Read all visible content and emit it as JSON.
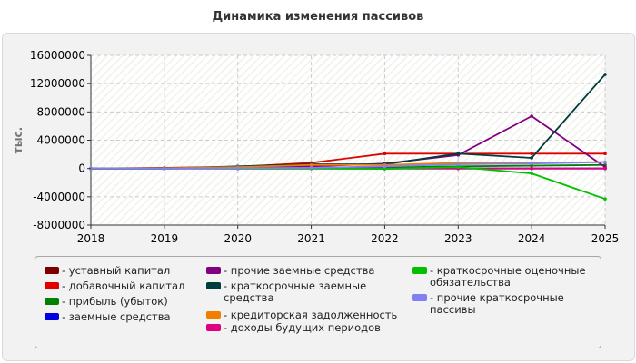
{
  "title": "Динамика изменения пассивов",
  "chart_data": {
    "type": "line",
    "ylabel": "тыс.",
    "xlabel": "",
    "x": [
      "2018",
      "2019",
      "2020",
      "2021",
      "2022",
      "2023",
      "2024",
      "2025"
    ],
    "ylim": [
      -8000000,
      16000000
    ],
    "yticks": [
      -8000000,
      -4000000,
      0,
      4000000,
      8000000,
      12000000,
      16000000
    ],
    "ytick_labels": [
      "-8000000",
      "-4000000",
      "0",
      "4000000",
      "8000000",
      "12000000",
      "16000000"
    ],
    "grid": true,
    "legend_position": "bottom",
    "series": [
      {
        "name": "уставный капитал",
        "color": "#7a0000",
        "values": [
          0,
          10000,
          10000,
          10000,
          10000,
          10000,
          10000,
          10000
        ]
      },
      {
        "name": "добавочный капитал",
        "color": "#e00000",
        "values": [
          0,
          100000,
          250000,
          800000,
          2100000,
          2100000,
          2100000,
          2100000
        ]
      },
      {
        "name": "прибыль (убыток)",
        "color": "#008000",
        "values": [
          0,
          50000,
          100000,
          120000,
          150000,
          300000,
          400000,
          500000
        ]
      },
      {
        "name": "заемные средства",
        "color": "#0000e0",
        "values": [
          0,
          0,
          0,
          0,
          0,
          0,
          0,
          0
        ]
      },
      {
        "name": "прочие заемные средства",
        "color": "#800080",
        "values": [
          0,
          0,
          50000,
          300000,
          700000,
          1900000,
          7400000,
          200000
        ]
      },
      {
        "name": "краткосрочные заемные средства",
        "color": "#003c3c",
        "values": [
          0,
          0,
          300000,
          600000,
          600000,
          2100000,
          1500000,
          13300000
        ]
      },
      {
        "name": "кредиторская задолженность",
        "color": "#f07f00",
        "values": [
          0,
          50000,
          200000,
          500000,
          500000,
          800000,
          800000,
          900000
        ]
      },
      {
        "name": "доходы будущих периодов",
        "color": "#e0007f",
        "values": [
          0,
          0,
          0,
          0,
          0,
          0,
          0,
          0
        ]
      },
      {
        "name": "краткосрочные оценочные обязательства",
        "color": "#00c000",
        "values": [
          0,
          0,
          0,
          0,
          -50000,
          200000,
          -700000,
          -4300000
        ]
      },
      {
        "name": "прочие краткосрочные пассивы",
        "color": "#8080f0",
        "values": [
          0,
          0,
          50000,
          100000,
          300000,
          600000,
          700000,
          900000
        ]
      }
    ]
  }
}
